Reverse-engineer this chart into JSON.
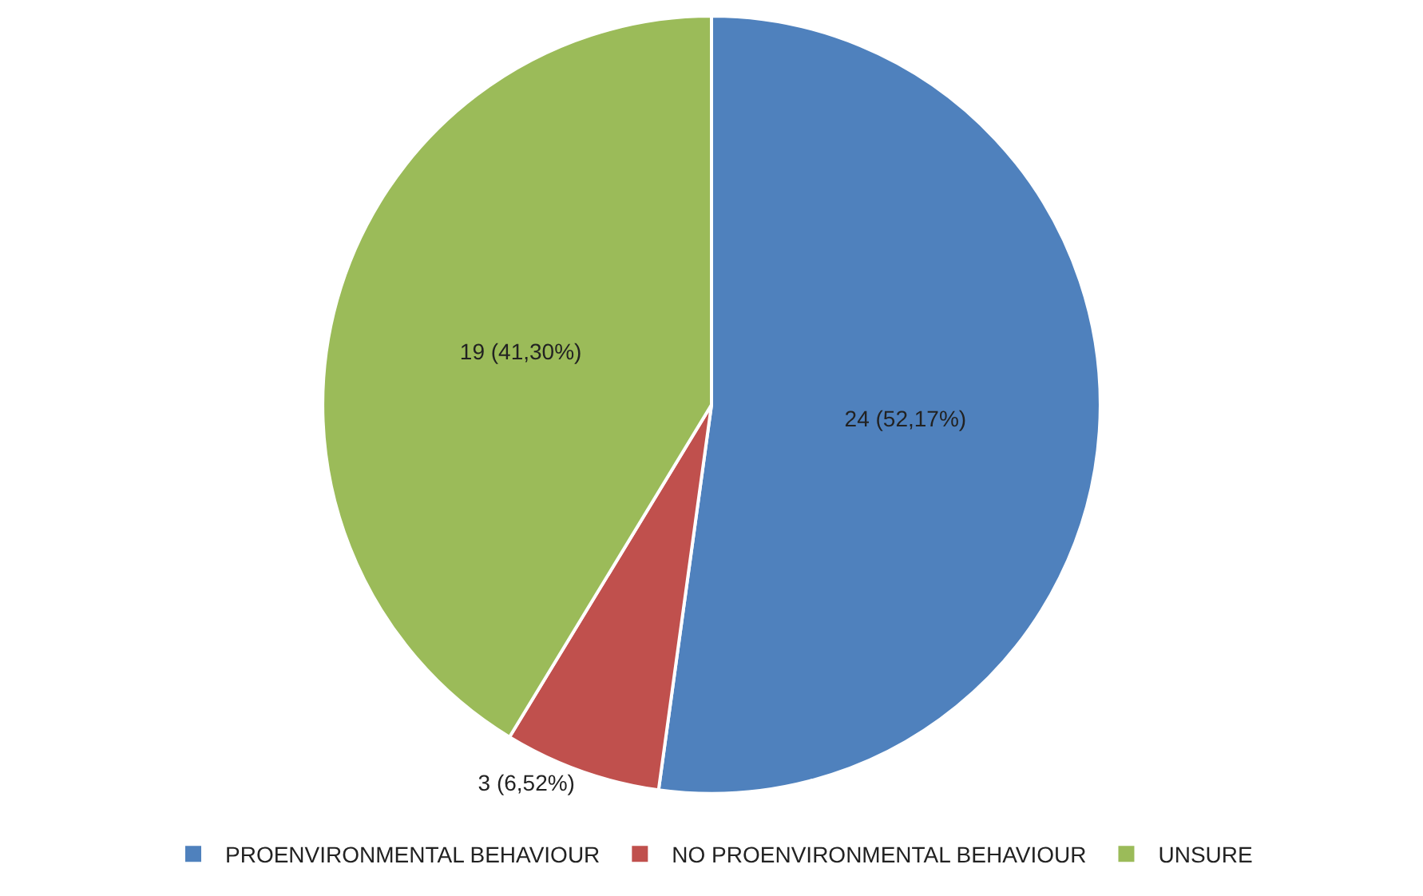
{
  "chart_data": {
    "type": "pie",
    "categories": [
      "PROENVIRONMENTAL BEHAVIOUR",
      "NO PROENVIRONMENTAL BEHAVIOUR",
      "UNSURE"
    ],
    "values": [
      24,
      3,
      19
    ],
    "value_labels": [
      "24 (52,17%)",
      "3 (6,52%)",
      "19 (41,30%)"
    ],
    "colors": [
      "#4f81bd",
      "#c0504d",
      "#9bbb59"
    ],
    "legend": "bottom"
  }
}
